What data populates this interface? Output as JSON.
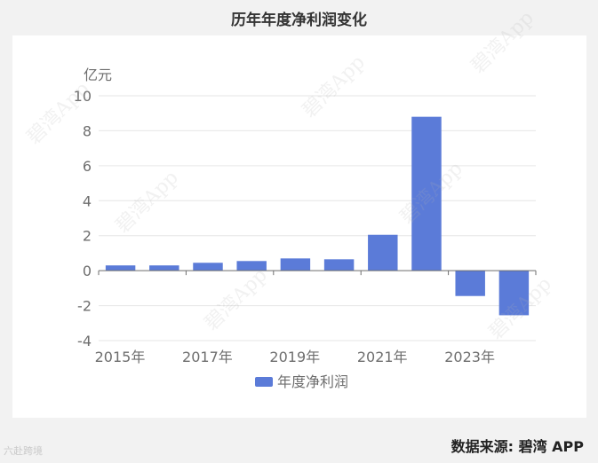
{
  "chart_data": {
    "type": "bar",
    "title": "历年年度净利润变化",
    "ylabel": "亿元",
    "xlabel": "",
    "ylim": [
      -4,
      10
    ],
    "yticks": [
      -4,
      -2,
      0,
      2,
      4,
      6,
      8,
      10
    ],
    "categories": [
      "2015年",
      "2016年",
      "2017年",
      "2018年",
      "2019年",
      "2020年",
      "2021年",
      "2022年",
      "2023年",
      "2024年"
    ],
    "x_tick_labels_shown": [
      "2015年",
      "2017年",
      "2019年",
      "2021年",
      "2023年"
    ],
    "series": [
      {
        "name": "年度净利润",
        "color": "#5b7bd8",
        "values": [
          0.3,
          0.3,
          0.45,
          0.55,
          0.7,
          0.65,
          2.05,
          8.8,
          -1.45,
          -2.55
        ]
      }
    ],
    "grid": true,
    "legend_position": "bottom"
  },
  "footer": {
    "source_text": "数据来源: 碧湾 APP",
    "corner_logo_text": "六赴跨境"
  },
  "watermark_text": "碧湾App"
}
